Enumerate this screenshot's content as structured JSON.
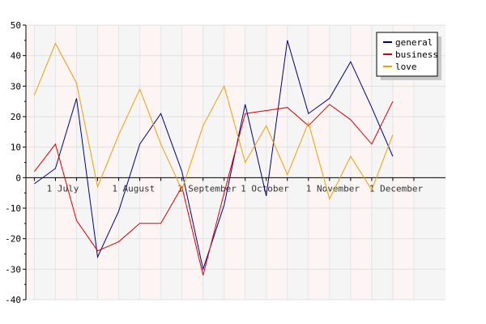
{
  "chart_data": {
    "type": "line",
    "title": "",
    "xlabel": "",
    "ylabel": "",
    "ylim": [
      -40,
      50
    ],
    "yticks": [
      50,
      40,
      30,
      20,
      10,
      0,
      -10,
      -20,
      -30,
      -40
    ],
    "x": [
      "2024-06-24",
      "2024-07-04",
      "2024-07-14",
      "2024-07-24",
      "2024-08-03",
      "2024-08-13",
      "2024-08-23",
      "2024-09-02",
      "2024-09-12",
      "2024-09-22",
      "2024-10-02",
      "2024-10-12",
      "2024-10-22",
      "2024-11-01",
      "2024-11-11",
      "2024-11-21",
      "2024-12-01",
      "2024-12-11",
      "2024-12-21"
    ],
    "xlim": [
      "2024-06-20",
      "2025-01-05"
    ],
    "xticks": [
      {
        "label": "1 July",
        "date": "2024-07-01"
      },
      {
        "label": "1 August",
        "date": "2024-08-01"
      },
      {
        "label": "1 September",
        "date": "2024-09-01"
      },
      {
        "label": "1 October",
        "date": "2024-10-01"
      },
      {
        "label": "1 November",
        "date": "2024-11-01"
      },
      {
        "label": "1 December",
        "date": "2024-12-01"
      }
    ],
    "series": [
      {
        "name": "general",
        "color": "#000080",
        "values": [
          -2,
          3,
          26,
          -26,
          -11,
          11,
          21,
          2,
          -30,
          -9,
          24,
          -6,
          45,
          21,
          26,
          38,
          23,
          7,
          null
        ]
      },
      {
        "name": "business",
        "color": "#dd0000",
        "values": [
          2,
          11,
          -14,
          -24,
          -21,
          -15,
          -15,
          -3,
          -32,
          -5,
          21,
          22,
          23,
          17,
          24,
          19,
          11,
          25,
          null
        ]
      },
      {
        "name": "love",
        "color": "#f0a000",
        "values": [
          27,
          44,
          31,
          -3,
          14,
          29,
          11,
          -4,
          17,
          30,
          5,
          17,
          1,
          18,
          -7,
          7,
          -4,
          14,
          null
        ]
      }
    ],
    "legend": {
      "position": "top-right",
      "entries": [
        "general",
        "business",
        "love"
      ]
    },
    "grid": true
  }
}
